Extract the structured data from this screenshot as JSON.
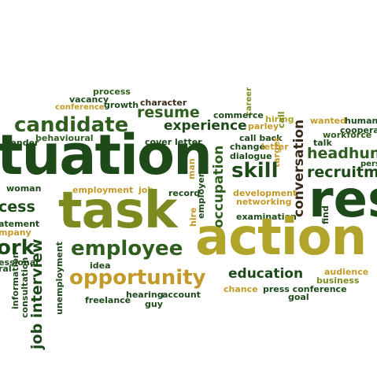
{
  "palette": {
    "dark_green": "#1e4a1a",
    "forest_green": "#2f5e1e",
    "olive": "#7c8a1f",
    "khaki": "#b0a52a",
    "light_olive": "#a9b43a",
    "brown": "#3a2a1a",
    "gold": "#c29a2a"
  },
  "words": {
    "process": "process",
    "vacancy": "vacancy",
    "growth": "growth",
    "character": "character",
    "conference": "conference",
    "career": "career",
    "commerce": "commerce",
    "resume": "resume",
    "candidate": "candidate",
    "hiring": "hiring",
    "parley": "parley",
    "call": "call",
    "experience": "experience",
    "wanted": "wanted",
    "human": "human",
    "cooperation": "cooperat",
    "workforce": "workforce",
    "render": "render",
    "behavioural": "behavioural",
    "cover_letter": "cover letter",
    "call_back": "call back",
    "change": "change",
    "letter": "letter",
    "situation": "tuation",
    "man": "man",
    "dialogue": "dialogue",
    "target": "target",
    "skill": "skill",
    "headhunter": "headhun",
    "talk": "talk",
    "person": "pers",
    "recruitment": "recruitm",
    "conversation": "conversation",
    "woman": "woman",
    "employment": "employment",
    "job": "job",
    "record": "record",
    "employer": "employer",
    "occupation": "occupation",
    "development": "development",
    "networking": "networking",
    "task": "task",
    "process_big": "cess",
    "hire": "hire",
    "examination": "examination",
    "find": "find",
    "result": "res",
    "statement": "atement",
    "company": "mpany",
    "job_interview": "job interview",
    "action": "action",
    "employee": "employee",
    "work": "ork",
    "professional": "essional",
    "idea": "idea",
    "unemployment": "unemployment",
    "opportunity": "opportunity",
    "education": "education",
    "audience": "audience",
    "business": "business",
    "oral": "ral",
    "information": "information",
    "consultation": "consultation",
    "chance": "chance",
    "press_conference": "press conference",
    "goal": "goal",
    "hearing": "hearing",
    "account": "account",
    "freelance": "freelance",
    "guy": "guy"
  }
}
